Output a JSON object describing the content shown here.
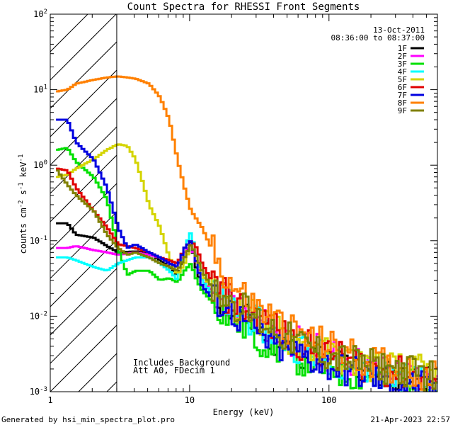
{
  "chart_data": {
    "type": "line",
    "title": "Count Spectra for RHESSI Front Segments",
    "xlabel": "Energy (keV)",
    "ylabel_parts": [
      "counts cm",
      "-2",
      " s",
      "-1",
      " keV",
      "-1"
    ],
    "x_scale": "log",
    "y_scale": "log",
    "xlim": [
      1,
      600
    ],
    "ylim": [
      0.001,
      100
    ],
    "x_ticks": [
      {
        "value": 1,
        "label": "1"
      },
      {
        "value": 10,
        "label": "10"
      },
      {
        "value": 100,
        "label": "100"
      }
    ],
    "y_ticks": [
      {
        "value": 0.001,
        "base": "10",
        "exp": "-3"
      },
      {
        "value": 0.01,
        "base": "10",
        "exp": "-2"
      },
      {
        "value": 0.1,
        "base": "10",
        "exp": "-1"
      },
      {
        "value": 1,
        "base": "10",
        "exp": "0"
      },
      {
        "value": 10,
        "base": "10",
        "exp": "1"
      },
      {
        "value": 100,
        "base": "10",
        "exp": "2"
      }
    ],
    "excluded_region": {
      "from": 1,
      "to": 3
    },
    "date": "13-Oct-2011",
    "time_range": "08:36:00 to 08:37:00",
    "annotations": [
      "Includes Background",
      "Att A0, FDecim 1"
    ],
    "series": [
      {
        "name": "1F",
        "color": "#000000",
        "points": [
          [
            1.1,
            0.17
          ],
          [
            1.3,
            0.17
          ],
          [
            1.5,
            0.12
          ],
          [
            2,
            0.11
          ],
          [
            2.5,
            0.085
          ],
          [
            3,
            0.07
          ],
          [
            4,
            0.072
          ],
          [
            5,
            0.07
          ],
          [
            6,
            0.055
          ],
          [
            7,
            0.045
          ],
          [
            8,
            0.035
          ],
          [
            9,
            0.06
          ],
          [
            10,
            0.1
          ],
          [
            11,
            0.04
          ],
          [
            12,
            0.025
          ],
          [
            14,
            0.018
          ],
          [
            17,
            0.015
          ],
          [
            20,
            0.012
          ],
          [
            25,
            0.009
          ],
          [
            30,
            0.007
          ],
          [
            40,
            0.005
          ],
          [
            50,
            0.004
          ],
          [
            70,
            0.003
          ],
          [
            100,
            0.0025
          ],
          [
            150,
            0.002
          ],
          [
            200,
            0.0018
          ],
          [
            300,
            0.0015
          ],
          [
            500,
            0.0013
          ],
          [
            600,
            0.0012
          ]
        ]
      },
      {
        "name": "2F",
        "color": "#ff00ff",
        "points": [
          [
            1.1,
            0.08
          ],
          [
            1.3,
            0.08
          ],
          [
            1.5,
            0.085
          ],
          [
            2,
            0.075
          ],
          [
            2.5,
            0.07
          ],
          [
            3,
            0.065
          ],
          [
            4,
            0.07
          ],
          [
            5,
            0.065
          ],
          [
            6,
            0.06
          ],
          [
            7,
            0.05
          ],
          [
            8,
            0.045
          ],
          [
            9,
            0.07
          ],
          [
            10,
            0.09
          ],
          [
            11,
            0.05
          ],
          [
            12,
            0.03
          ],
          [
            14,
            0.022
          ],
          [
            17,
            0.017
          ],
          [
            20,
            0.014
          ],
          [
            25,
            0.011
          ],
          [
            30,
            0.009
          ],
          [
            40,
            0.006
          ],
          [
            50,
            0.005
          ],
          [
            70,
            0.004
          ],
          [
            100,
            0.003
          ],
          [
            150,
            0.0025
          ],
          [
            200,
            0.002
          ],
          [
            300,
            0.0017
          ],
          [
            500,
            0.0014
          ],
          [
            600,
            0.0012
          ]
        ]
      },
      {
        "name": "3F",
        "color": "#00e000",
        "points": [
          [
            1.1,
            1.6
          ],
          [
            1.3,
            1.7
          ],
          [
            1.5,
            1.1
          ],
          [
            2,
            0.7
          ],
          [
            2.5,
            0.35
          ],
          [
            3,
            0.08
          ],
          [
            3.5,
            0.035
          ],
          [
            4,
            0.04
          ],
          [
            5,
            0.04
          ],
          [
            6,
            0.03
          ],
          [
            7,
            0.032
          ],
          [
            8,
            0.028
          ],
          [
            9,
            0.04
          ],
          [
            10,
            0.05
          ],
          [
            11,
            0.03
          ],
          [
            12,
            0.022
          ],
          [
            14,
            0.016
          ],
          [
            17,
            0.012
          ],
          [
            20,
            0.009
          ],
          [
            25,
            0.007
          ],
          [
            30,
            0.005
          ],
          [
            40,
            0.004
          ],
          [
            50,
            0.003
          ],
          [
            70,
            0.0025
          ],
          [
            100,
            0.002
          ],
          [
            150,
            0.0017
          ],
          [
            200,
            0.0015
          ],
          [
            300,
            0.0013
          ],
          [
            500,
            0.0011
          ],
          [
            600,
            0.001
          ]
        ]
      },
      {
        "name": "4F",
        "color": "#00ffff",
        "points": [
          [
            1.1,
            0.06
          ],
          [
            1.3,
            0.06
          ],
          [
            1.5,
            0.055
          ],
          [
            2,
            0.045
          ],
          [
            2.5,
            0.04
          ],
          [
            3,
            0.05
          ],
          [
            4,
            0.06
          ],
          [
            5,
            0.06
          ],
          [
            6,
            0.05
          ],
          [
            7,
            0.04
          ],
          [
            8,
            0.03
          ],
          [
            9,
            0.08
          ],
          [
            10,
            0.13
          ],
          [
            11,
            0.06
          ],
          [
            12,
            0.03
          ],
          [
            14,
            0.02
          ],
          [
            17,
            0.016
          ],
          [
            20,
            0.013
          ],
          [
            25,
            0.01
          ],
          [
            30,
            0.008
          ],
          [
            40,
            0.006
          ],
          [
            50,
            0.0045
          ],
          [
            70,
            0.0035
          ],
          [
            100,
            0.0028
          ],
          [
            150,
            0.0022
          ],
          [
            200,
            0.0019
          ],
          [
            300,
            0.0016
          ],
          [
            500,
            0.0013
          ],
          [
            600,
            0.0012
          ]
        ]
      },
      {
        "name": "5F",
        "color": "#d4d400",
        "points": [
          [
            1.1,
            0.7
          ],
          [
            1.3,
            0.75
          ],
          [
            1.5,
            0.9
          ],
          [
            2,
            1.2
          ],
          [
            2.5,
            1.6
          ],
          [
            3,
            1.9
          ],
          [
            3.5,
            1.8
          ],
          [
            4,
            1.2
          ],
          [
            4.5,
            0.6
          ],
          [
            5,
            0.3
          ],
          [
            6,
            0.15
          ],
          [
            7,
            0.06
          ],
          [
            8,
            0.035
          ],
          [
            9,
            0.05
          ],
          [
            10,
            0.09
          ],
          [
            11,
            0.06
          ],
          [
            12,
            0.035
          ],
          [
            14,
            0.025
          ],
          [
            17,
            0.02
          ],
          [
            20,
            0.015
          ],
          [
            25,
            0.012
          ],
          [
            30,
            0.009
          ],
          [
            40,
            0.007
          ],
          [
            50,
            0.005
          ],
          [
            70,
            0.004
          ],
          [
            100,
            0.003
          ],
          [
            150,
            0.0025
          ],
          [
            200,
            0.0022
          ],
          [
            300,
            0.002
          ],
          [
            500,
            0.0018
          ],
          [
            600,
            0.0015
          ]
        ]
      },
      {
        "name": "6F",
        "color": "#e00000",
        "points": [
          [
            1.1,
            0.9
          ],
          [
            1.3,
            0.85
          ],
          [
            1.5,
            0.5
          ],
          [
            2,
            0.25
          ],
          [
            2.5,
            0.15
          ],
          [
            3,
            0.09
          ],
          [
            4,
            0.08
          ],
          [
            5,
            0.07
          ],
          [
            6,
            0.06
          ],
          [
            7,
            0.055
          ],
          [
            8,
            0.05
          ],
          [
            9,
            0.08
          ],
          [
            10,
            0.1
          ],
          [
            11,
            0.08
          ],
          [
            12,
            0.05
          ],
          [
            14,
            0.03
          ],
          [
            17,
            0.02
          ],
          [
            20,
            0.016
          ],
          [
            25,
            0.012
          ],
          [
            30,
            0.01
          ],
          [
            40,
            0.007
          ],
          [
            50,
            0.005
          ],
          [
            70,
            0.004
          ],
          [
            100,
            0.003
          ],
          [
            150,
            0.0025
          ],
          [
            200,
            0.002
          ],
          [
            300,
            0.0018
          ],
          [
            500,
            0.0015
          ],
          [
            600,
            0.0013
          ]
        ]
      },
      {
        "name": "7F",
        "color": "#0000e0",
        "points": [
          [
            1.1,
            4
          ],
          [
            1.3,
            4
          ],
          [
            1.5,
            2
          ],
          [
            2,
            1.2
          ],
          [
            2.5,
            0.5
          ],
          [
            3,
            0.15
          ],
          [
            3.5,
            0.08
          ],
          [
            4,
            0.09
          ],
          [
            5,
            0.07
          ],
          [
            6,
            0.06
          ],
          [
            7,
            0.05
          ],
          [
            8,
            0.045
          ],
          [
            9,
            0.08
          ],
          [
            10,
            0.1
          ],
          [
            11,
            0.05
          ],
          [
            12,
            0.025
          ],
          [
            14,
            0.018
          ],
          [
            17,
            0.014
          ],
          [
            20,
            0.011
          ],
          [
            25,
            0.008
          ],
          [
            30,
            0.006
          ],
          [
            40,
            0.004
          ],
          [
            50,
            0.0035
          ],
          [
            70,
            0.0028
          ],
          [
            100,
            0.0022
          ],
          [
            150,
            0.0018
          ],
          [
            200,
            0.0015
          ],
          [
            300,
            0.0013
          ],
          [
            500,
            0.0011
          ],
          [
            600,
            0.001
          ]
        ]
      },
      {
        "name": "8F",
        "color": "#ff8000",
        "points": [
          [
            1.1,
            9.5
          ],
          [
            1.3,
            10
          ],
          [
            1.5,
            12
          ],
          [
            2,
            13.5
          ],
          [
            2.5,
            14.5
          ],
          [
            3,
            15
          ],
          [
            3.5,
            14.5
          ],
          [
            4,
            14
          ],
          [
            5,
            12
          ],
          [
            6,
            8
          ],
          [
            7,
            4
          ],
          [
            8,
            1.2
          ],
          [
            9,
            0.5
          ],
          [
            10,
            0.25
          ],
          [
            12,
            0.15
          ],
          [
            14,
            0.08
          ],
          [
            17,
            0.04
          ],
          [
            20,
            0.025
          ],
          [
            25,
            0.018
          ],
          [
            30,
            0.013
          ],
          [
            40,
            0.009
          ],
          [
            50,
            0.007
          ],
          [
            70,
            0.005
          ],
          [
            100,
            0.004
          ],
          [
            150,
            0.003
          ],
          [
            200,
            0.0025
          ],
          [
            300,
            0.002
          ],
          [
            500,
            0.0017
          ],
          [
            600,
            0.0015
          ]
        ]
      },
      {
        "name": "9F",
        "color": "#808000",
        "points": [
          [
            1.1,
            0.85
          ],
          [
            1.3,
            0.55
          ],
          [
            1.5,
            0.4
          ],
          [
            2,
            0.25
          ],
          [
            2.5,
            0.12
          ],
          [
            3,
            0.08
          ],
          [
            3.5,
            0.065
          ],
          [
            4,
            0.07
          ],
          [
            5,
            0.06
          ],
          [
            6,
            0.05
          ],
          [
            7,
            0.045
          ],
          [
            8,
            0.04
          ],
          [
            9,
            0.06
          ],
          [
            10,
            0.09
          ],
          [
            11,
            0.06
          ],
          [
            12,
            0.04
          ],
          [
            14,
            0.025
          ],
          [
            17,
            0.02
          ],
          [
            20,
            0.015
          ],
          [
            25,
            0.012
          ],
          [
            30,
            0.009
          ],
          [
            40,
            0.007
          ],
          [
            50,
            0.005
          ],
          [
            70,
            0.004
          ],
          [
            100,
            0.003
          ],
          [
            150,
            0.0025
          ],
          [
            200,
            0.0022
          ],
          [
            300,
            0.002
          ],
          [
            500,
            0.0017
          ],
          [
            600,
            0.0015
          ]
        ]
      }
    ]
  },
  "footer": {
    "generated_by": "Generated by hsi_min_spectra_plot.pro",
    "timestamp": "21-Apr-2023 22:57"
  }
}
